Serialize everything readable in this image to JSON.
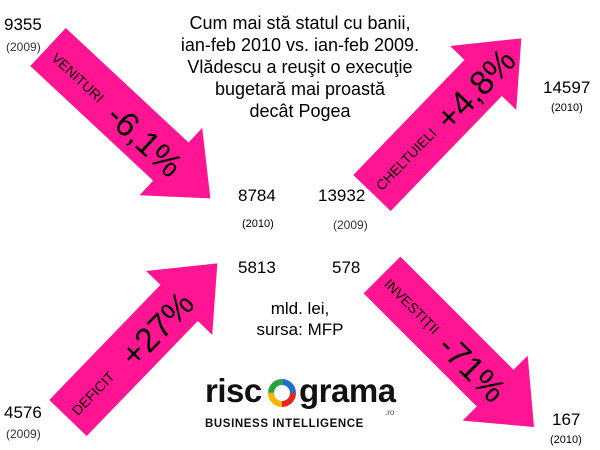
{
  "title_lines": [
    "Cum mai stă statul cu banii,",
    "ian-feb 2010 vs. ian-feb 2009.",
    "Vlădescu a reuşit o execuţie",
    "bugetară mai proastă",
    "decât Pogea"
  ],
  "arrows": {
    "venituri": {
      "label": "VENITURI",
      "change": "-6,1%",
      "from_value": "9355",
      "from_year": "(2009)",
      "to_value": "8784",
      "to_year": "(2010)"
    },
    "cheltuieli": {
      "label": "CHELTUIELI",
      "change": "+4,8%",
      "from_value": "13932",
      "from_year": "(2009)",
      "to_value": "14597",
      "to_year": "(2010)"
    },
    "deficit": {
      "label": "DEFICIT",
      "change": "+27%",
      "from_value": "4576",
      "from_year": "(2009)",
      "to_value": "5813"
    },
    "investitii": {
      "label": "INVESTIŢII",
      "change": "-71%",
      "from_value": "578",
      "to_value": "167",
      "to_year": "(2010)"
    }
  },
  "source_lines": [
    "mld. lei,",
    "sursa: MFP"
  ],
  "logo": {
    "text_left": "risc",
    "text_right": "grama",
    "suffix": ".ro",
    "tagline": "BUSINESS INTELLIGENCE"
  },
  "colors": {
    "arrow": "#ff1493",
    "logo_ring": [
      "#e8231f",
      "#f7b400",
      "#2aa13f",
      "#1f6fd1"
    ]
  }
}
